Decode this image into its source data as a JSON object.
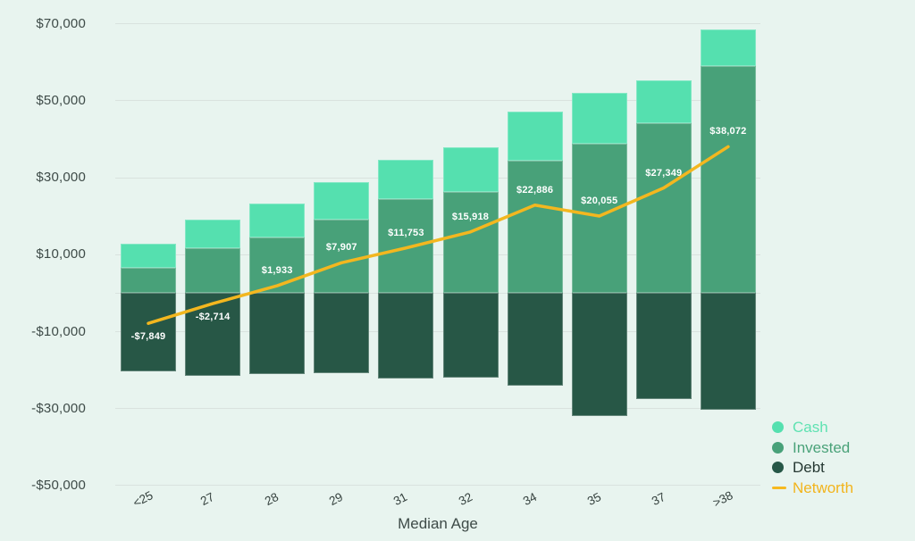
{
  "colors": {
    "background": "#e8f4ef",
    "grid": "#d9e2de",
    "axis_text": "#3e4b48",
    "x_tick_text": "#34403d",
    "bar_label": "#ffffff",
    "cash": "#55e0af",
    "invested": "#48a179",
    "debt": "#275746",
    "networth": "#f3b71f"
  },
  "chart_data": {
    "type": "bar",
    "stacked": true,
    "title": "",
    "xlabel": "Median Age",
    "ylabel": "",
    "ylim": [
      -50000,
      70000
    ],
    "grid": true,
    "legend_position": "bottom-right",
    "categories": [
      "<25",
      "27",
      "28",
      "29",
      "31",
      "32",
      "34",
      "35",
      "37",
      ">38"
    ],
    "series": [
      {
        "name": "Cash",
        "color": "#55e0af",
        "values": [
          6300,
          7400,
          8800,
          9800,
          10200,
          11600,
          12800,
          13300,
          11100,
          9500
        ]
      },
      {
        "name": "Invested",
        "color": "#48a179",
        "values": [
          6600,
          11700,
          14500,
          19100,
          24500,
          26300,
          34400,
          38800,
          44200,
          59000
        ]
      },
      {
        "name": "Debt",
        "color": "#275746",
        "values": [
          -20300,
          -21500,
          -21000,
          -20800,
          -22200,
          -21900,
          -24000,
          -31900,
          -27500,
          -30300
        ]
      }
    ],
    "line_series": {
      "name": "Networth",
      "color": "#f3b71f",
      "values": [
        -7849,
        -2714,
        1933,
        7907,
        11753,
        15918,
        22886,
        20055,
        27349,
        38072
      ]
    },
    "point_labels": [
      "-$7,849",
      "-$2,714",
      "$1,933",
      "$7,907",
      "$11,753",
      "$15,918",
      "$22,886",
      "$20,055",
      "$27,349",
      "$38,072"
    ],
    "y_ticks": [
      {
        "value": 70000,
        "label": "$70,000"
      },
      {
        "value": 50000,
        "label": "$50,000"
      },
      {
        "value": 30000,
        "label": "$30,000"
      },
      {
        "value": 10000,
        "label": "$10,000"
      },
      {
        "value": -10000,
        "label": "-$10,000"
      },
      {
        "value": -30000,
        "label": "-$30,000"
      },
      {
        "value": -50000,
        "label": "-$50,000"
      }
    ],
    "legend": [
      {
        "label": "Cash",
        "marker": "dot",
        "swatch_color": "#55e0af",
        "text_color": "#5fe2b2"
      },
      {
        "label": "Invested",
        "marker": "dot",
        "swatch_color": "#48a179",
        "text_color": "#4aa279"
      },
      {
        "label": "Debt",
        "marker": "dot",
        "swatch_color": "#265747",
        "text_color": "#253832"
      },
      {
        "label": "Networth",
        "marker": "dash",
        "swatch_color": "#f6b91f",
        "text_color": "#f2b41c"
      }
    ]
  }
}
